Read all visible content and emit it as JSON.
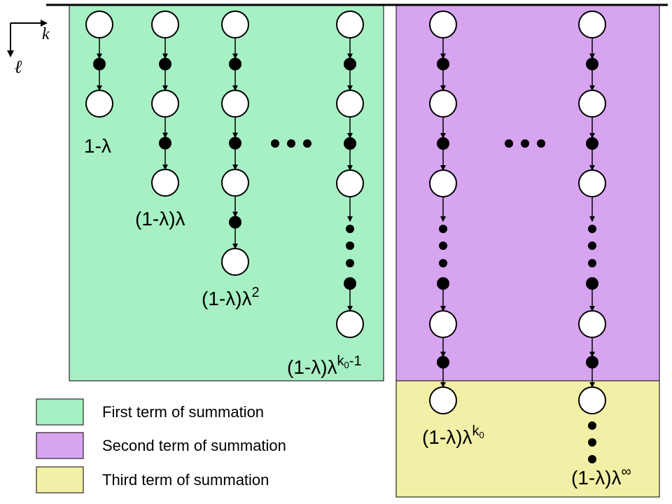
{
  "axes": {
    "horizontal": "k",
    "vertical": "ℓ"
  },
  "colors": {
    "first": "#a6f0c4",
    "second": "#d7a4f0",
    "third": "#f2f0a6"
  },
  "chain_labels": {
    "c1": "1-λ",
    "c2": "(1-λ)λ",
    "c3_base": "(1-λ)λ",
    "c3_exp": "2",
    "c4_base": "(1-λ)λ",
    "c4_exp_sym": "k",
    "c4_exp_sub": "0",
    "c4_exp_rest": "-1",
    "c5_base": "(1-λ)λ",
    "c5_exp_sym": "k",
    "c5_exp_sub": "0",
    "c6_base": "(1-λ)λ",
    "c6_exp": "∞"
  },
  "legend": [
    {
      "label": "First term of summation",
      "color": "#a6f0c4"
    },
    {
      "label": "Second term of summation",
      "color": "#d7a4f0"
    },
    {
      "label": "Third term of summation",
      "color": "#f2f0a6"
    }
  ]
}
